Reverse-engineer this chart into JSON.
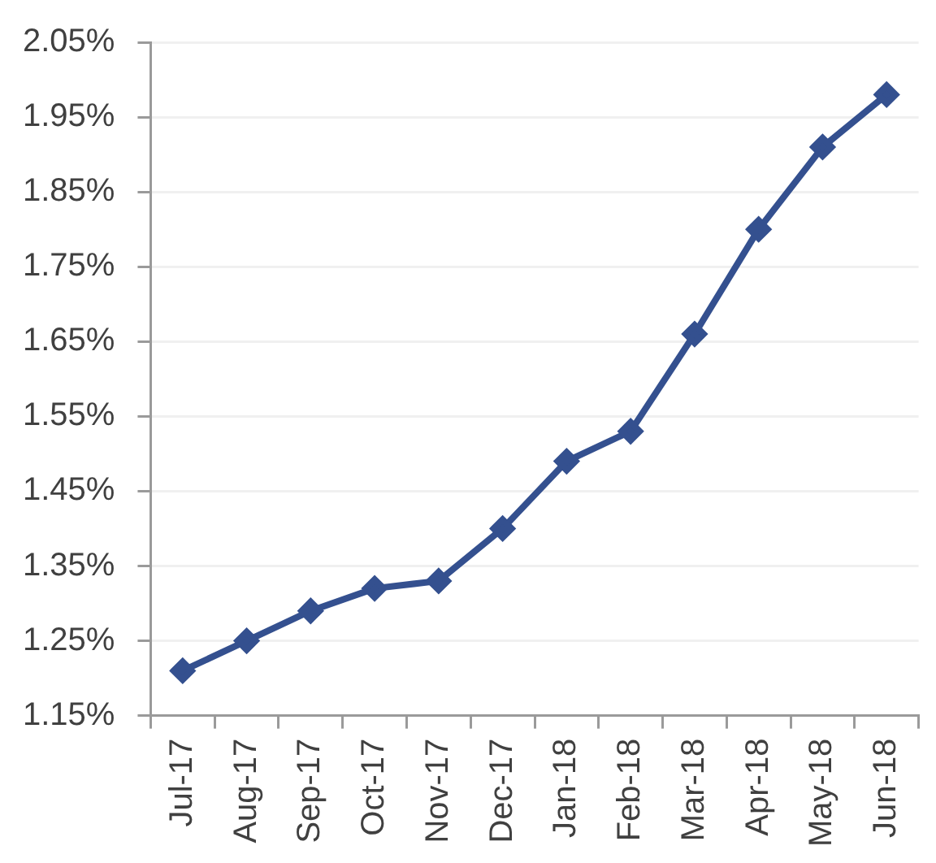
{
  "chart_data": {
    "type": "line",
    "categories": [
      "Jul-17",
      "Aug-17",
      "Sep-17",
      "Oct-17",
      "Nov-17",
      "Dec-17",
      "Jan-18",
      "Feb-18",
      "Mar-18",
      "Apr-18",
      "May-18",
      "Jun-18"
    ],
    "series": [
      {
        "color": "#34508f",
        "values": [
          1.21,
          1.25,
          1.29,
          1.32,
          1.33,
          1.4,
          1.49,
          1.53,
          1.66,
          1.8,
          1.91,
          1.98
        ]
      }
    ],
    "ylim": [
      1.15,
      2.05
    ],
    "yticks": [
      {
        "value": 1.15,
        "label": "1.15%"
      },
      {
        "value": 1.25,
        "label": "1.25%"
      },
      {
        "value": 1.35,
        "label": "1.35%"
      },
      {
        "value": 1.45,
        "label": "1.45%"
      },
      {
        "value": 1.55,
        "label": "1.55%"
      },
      {
        "value": 1.65,
        "label": "1.65%"
      },
      {
        "value": 1.75,
        "label": "1.75%"
      },
      {
        "value": 1.85,
        "label": "1.85%"
      },
      {
        "value": 1.95,
        "label": "1.95%"
      },
      {
        "value": 2.05,
        "label": "2.05%"
      }
    ],
    "grid": "y",
    "marker": "diamond",
    "line_style": "solid"
  }
}
